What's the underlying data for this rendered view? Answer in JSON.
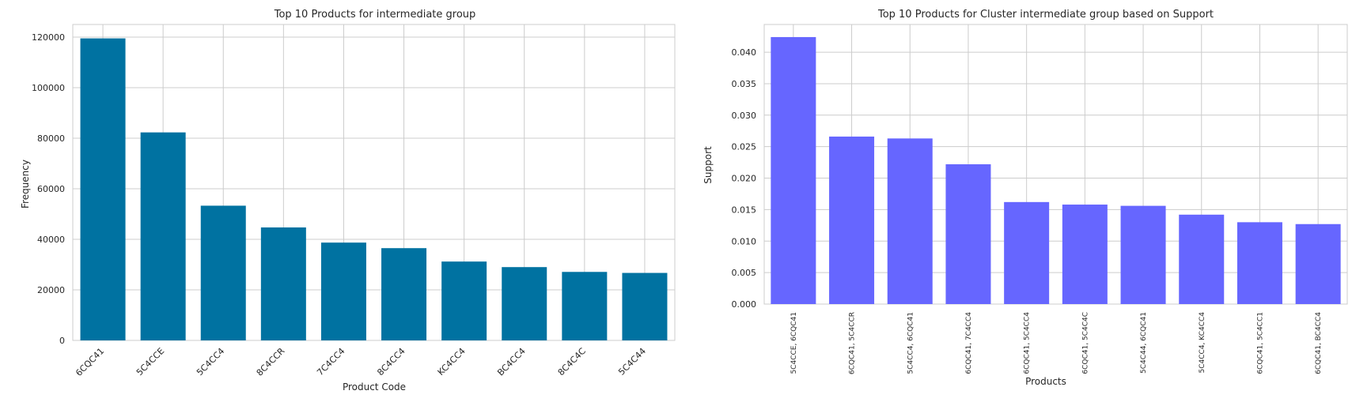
{
  "chart_data": [
    {
      "type": "bar",
      "title": "Top 10 Products for intermediate group",
      "xlabel": "Product Code",
      "ylabel": "Frequency",
      "categories": [
        "6CQC41",
        "5C4CCE",
        "5C4CC4",
        "8C4CCR",
        "7C4CC4",
        "8C4CC4",
        "KC4CC4",
        "BC4CC4",
        "8C4C4C",
        "5C4C44"
      ],
      "values": [
        119500,
        82300,
        53300,
        44700,
        38700,
        36500,
        31200,
        29000,
        27100,
        26700
      ],
      "ylim": [
        0,
        125000
      ],
      "yticks": [
        0,
        20000,
        40000,
        60000,
        80000,
        100000,
        120000
      ],
      "ytick_labels": [
        "0",
        "20000",
        "40000",
        "60000",
        "80000",
        "100000",
        "120000"
      ],
      "grid": true,
      "bar_color": "#0072a1"
    },
    {
      "type": "bar",
      "title": "Top 10 Products for Cluster intermediate group based on Support",
      "xlabel": "Products",
      "ylabel": "Support",
      "categories": [
        "5C4CCE, 6CQC41",
        "6CQC41, 5C4CCR",
        "5C4CC4, 6CQC41",
        "6CQC41, 7C4CC4",
        "6CQC41, 5C4CC4",
        "6CQC41, 5C4C4C",
        "5C4C44, 6CQC41",
        "5C4CC4, KC4CC4",
        "6CQC41, 5C4CC1",
        "6CQC41, BC4CC4"
      ],
      "values": [
        0.0424,
        0.0266,
        0.0263,
        0.0222,
        0.0162,
        0.0158,
        0.0156,
        0.0142,
        0.013,
        0.0127
      ],
      "ylim": [
        0,
        0.0444
      ],
      "yticks": [
        0,
        0.005,
        0.01,
        0.015,
        0.02,
        0.025,
        0.03,
        0.035,
        0.04
      ],
      "ytick_labels": [
        "0.000",
        "0.005",
        "0.010",
        "0.015",
        "0.020",
        "0.025",
        "0.030",
        "0.035",
        "0.040"
      ],
      "grid": true,
      "bar_color": "#6666ff"
    }
  ]
}
